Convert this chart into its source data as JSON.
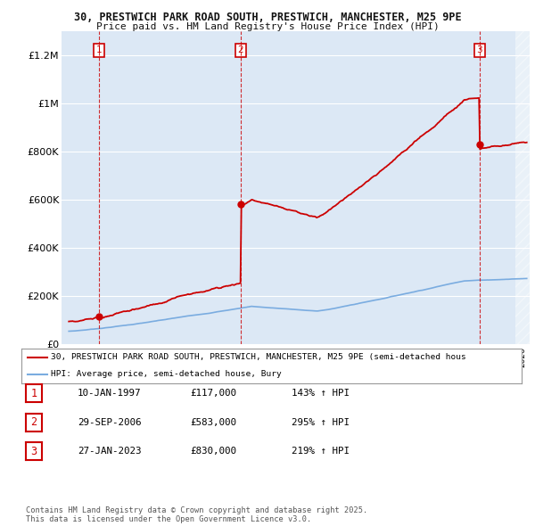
{
  "title_line1": "30, PRESTWICH PARK ROAD SOUTH, PRESTWICH, MANCHESTER, M25 9PE",
  "title_line2": "Price paid vs. HM Land Registry's House Price Index (HPI)",
  "ylim": [
    0,
    1300000
  ],
  "xlim_start": 1994.5,
  "xlim_end": 2026.5,
  "yticks": [
    0,
    200000,
    400000,
    600000,
    800000,
    1000000,
    1200000
  ],
  "ytick_labels": [
    "£0",
    "£200K",
    "£400K",
    "£600K",
    "£800K",
    "£1M",
    "£1.2M"
  ],
  "background_color": "#ffffff",
  "plot_bg_color": "#dce8f5",
  "grid_color": "#ffffff",
  "sale_points": [
    {
      "year": 1997.04,
      "price": 117000,
      "label": "1"
    },
    {
      "year": 2006.75,
      "price": 583000,
      "label": "2"
    },
    {
      "year": 2023.07,
      "price": 830000,
      "label": "3"
    }
  ],
  "hpi_color": "#7aace0",
  "price_color": "#cc0000",
  "legend_price_label": "30, PRESTWICH PARK ROAD SOUTH, PRESTWICH, MANCHESTER, M25 9PE (semi-detached hous",
  "legend_hpi_label": "HPI: Average price, semi-detached house, Bury",
  "table_rows": [
    {
      "num": "1",
      "date": "10-JAN-1997",
      "price": "£117,000",
      "hpi": "143% ↑ HPI"
    },
    {
      "num": "2",
      "date": "29-SEP-2006",
      "price": "£583,000",
      "hpi": "295% ↑ HPI"
    },
    {
      "num": "3",
      "date": "27-JAN-2023",
      "price": "£830,000",
      "hpi": "219% ↑ HPI"
    }
  ],
  "footer_text": "Contains HM Land Registry data © Crown copyright and database right 2025.\nThis data is licensed under the Open Government Licence v3.0."
}
